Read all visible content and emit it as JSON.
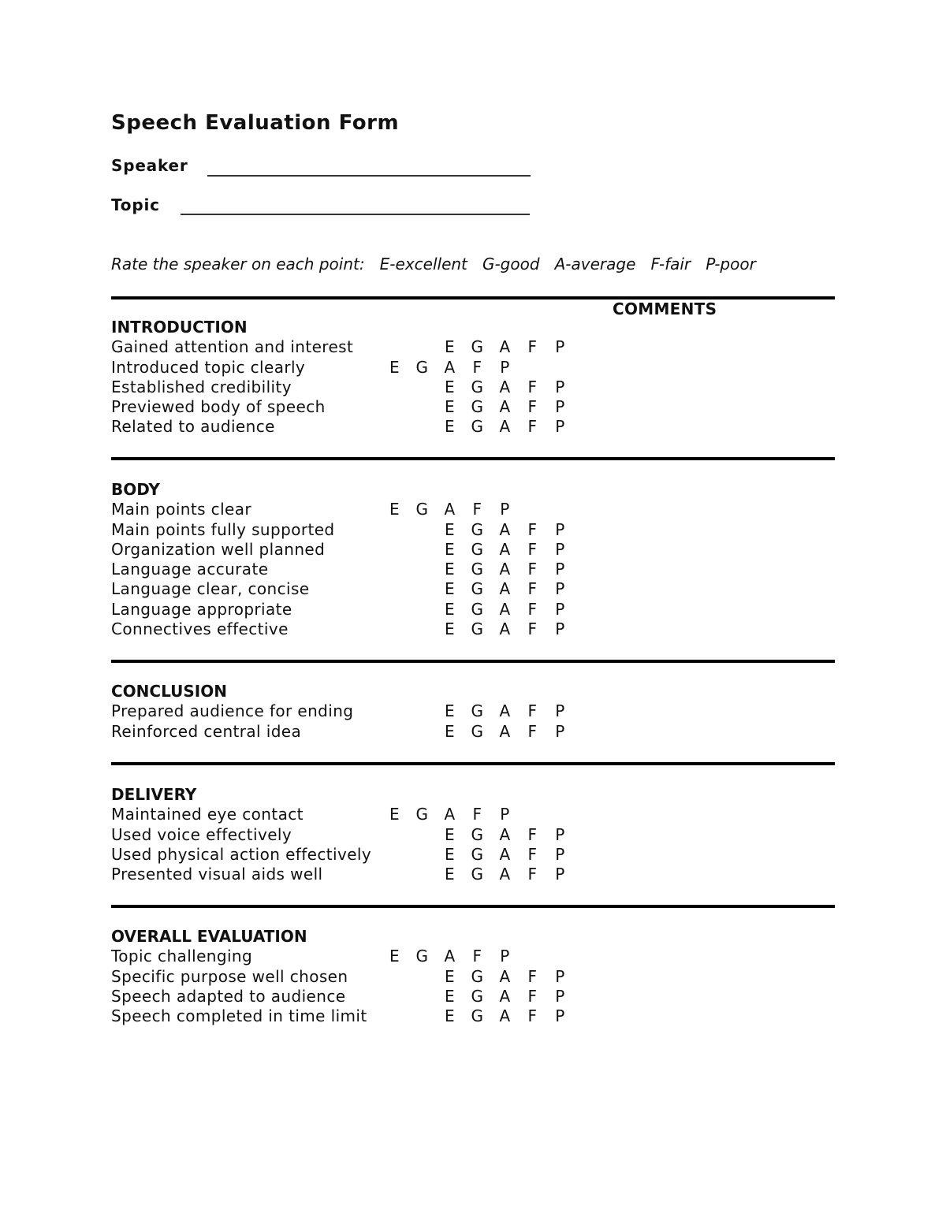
{
  "title": "Speech Evaluation Form",
  "fields": {
    "speaker": "Speaker",
    "topic": "Topic"
  },
  "instructions": "Rate the speaker on each point:   E-excellent   G-good   A-average   F-fair   P-poor",
  "comments_header": "COMMENTS",
  "ratings": [
    "E",
    "G",
    "A",
    "F",
    "P"
  ],
  "sections": [
    {
      "heading": "INTRODUCTION",
      "items": [
        "Gained attention and interest",
        "Introduced topic clearly",
        "Established credibility",
        "Previewed body of speech",
        "Related to audience"
      ]
    },
    {
      "heading": "BODY",
      "items": [
        "Main points clear",
        "Main points fully supported",
        "Organization well planned",
        "Language accurate",
        "Language clear, concise",
        "Language appropriate",
        "Connectives effective"
      ]
    },
    {
      "heading": "CONCLUSION",
      "items": [
        "Prepared audience for ending",
        "Reinforced central idea"
      ]
    },
    {
      "heading": "DELIVERY",
      "items": [
        "Maintained eye contact",
        "Used voice effectively",
        "Used physical action effectively",
        "Presented visual aids well"
      ]
    },
    {
      "heading": "OVERALL EVALUATION",
      "items": [
        "Topic challenging",
        "Specific purpose well chosen",
        "Speech adapted to audience",
        "Speech completed in time limit"
      ]
    }
  ]
}
